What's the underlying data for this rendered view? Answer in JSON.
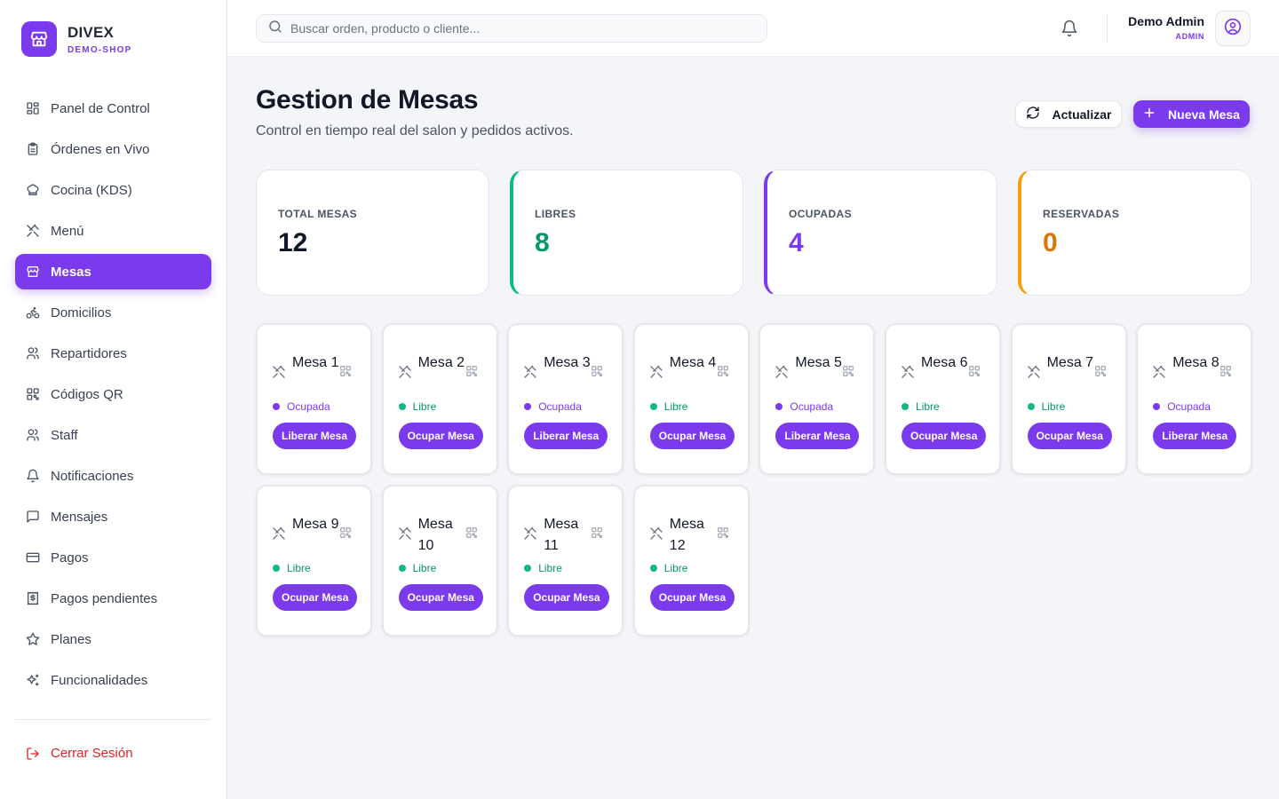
{
  "brand": {
    "name": "DIVEX",
    "subtitle": "DEMO-SHOP"
  },
  "sidebar": {
    "items": [
      {
        "label": "Panel de Control",
        "icon": "grid-icon",
        "active": false
      },
      {
        "label": "Órdenes en Vivo",
        "icon": "clipboard-icon",
        "active": false
      },
      {
        "label": "Cocina (KDS)",
        "icon": "chef-hat-icon",
        "active": false
      },
      {
        "label": "Menú",
        "icon": "utensils-icon",
        "active": false
      },
      {
        "label": "Mesas",
        "icon": "store-icon",
        "active": true
      },
      {
        "label": "Domicilios",
        "icon": "bike-icon",
        "active": false
      },
      {
        "label": "Repartidores",
        "icon": "users-icon",
        "active": false
      },
      {
        "label": "Códigos QR",
        "icon": "qr-code-icon",
        "active": false
      },
      {
        "label": "Staff",
        "icon": "users-icon",
        "active": false
      },
      {
        "label": "Notificaciones",
        "icon": "bell-icon",
        "active": false
      },
      {
        "label": "Mensajes",
        "icon": "message-icon",
        "active": false
      },
      {
        "label": "Pagos",
        "icon": "credit-card-icon",
        "active": false
      },
      {
        "label": "Pagos pendientes",
        "icon": "receipt-icon",
        "active": false
      },
      {
        "label": "Planes",
        "icon": "star-icon",
        "active": false
      },
      {
        "label": "Funcionalidades",
        "icon": "sparkles-icon",
        "active": false
      }
    ],
    "logout_label": "Cerrar Sesión"
  },
  "header": {
    "search_placeholder": "Buscar orden, producto o cliente...",
    "user_name": "Demo Admin",
    "user_role": "ADMIN"
  },
  "page": {
    "title": "Gestion de Mesas",
    "subtitle": "Control en tiempo real del salon y pedidos activos.",
    "refresh_label": "Actualizar",
    "new_label": "Nueva Mesa"
  },
  "stats": [
    {
      "label": "TOTAL MESAS",
      "value": "12",
      "color": "#111827",
      "accent": "none"
    },
    {
      "label": "LIBRES",
      "value": "8",
      "color": "#059669",
      "accent": "green"
    },
    {
      "label": "OCUPADAS",
      "value": "4",
      "color": "#7c3aed",
      "accent": "purple"
    },
    {
      "label": "RESERVADAS",
      "value": "0",
      "color": "#d97706",
      "accent": "orange"
    }
  ],
  "colors": {
    "accent": "#7c3aed",
    "libre": "#10b981",
    "ocupada": "#7c3aed"
  },
  "tables": [
    {
      "name": "Mesa 1",
      "status": "Ocupada",
      "action": "Liberar Mesa"
    },
    {
      "name": "Mesa 2",
      "status": "Libre",
      "action": "Ocupar Mesa"
    },
    {
      "name": "Mesa 3",
      "status": "Ocupada",
      "action": "Liberar Mesa"
    },
    {
      "name": "Mesa 4",
      "status": "Libre",
      "action": "Ocupar Mesa"
    },
    {
      "name": "Mesa 5",
      "status": "Ocupada",
      "action": "Liberar Mesa"
    },
    {
      "name": "Mesa 6",
      "status": "Libre",
      "action": "Ocupar Mesa"
    },
    {
      "name": "Mesa 7",
      "status": "Libre",
      "action": "Ocupar Mesa"
    },
    {
      "name": "Mesa 8",
      "status": "Ocupada",
      "action": "Liberar Mesa"
    },
    {
      "name": "Mesa 9",
      "status": "Libre",
      "action": "Ocupar Mesa"
    },
    {
      "name": "Mesa 10",
      "status": "Libre",
      "action": "Ocupar Mesa"
    },
    {
      "name": "Mesa 11",
      "status": "Libre",
      "action": "Ocupar Mesa"
    },
    {
      "name": "Mesa 12",
      "status": "Libre",
      "action": "Ocupar Mesa"
    }
  ]
}
